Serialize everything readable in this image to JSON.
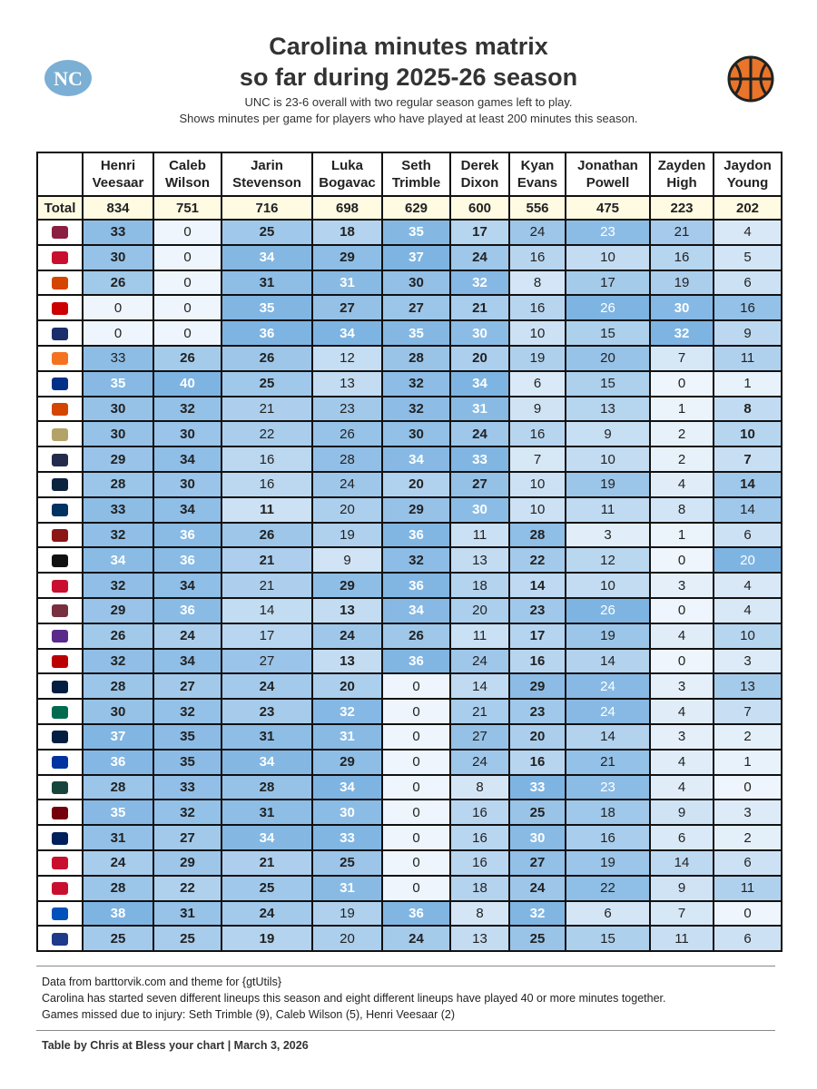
{
  "header": {
    "title_lines": [
      "Carolina minutes matrix",
      "so far during 2025-26 season"
    ],
    "subtitle_lines": [
      "UNC is 23-6 overall with two regular season games left to play.",
      "Shows minutes per game for players who have played at least 200 minutes this season."
    ]
  },
  "table": {
    "columns": [
      "Henri Veesaar",
      "Caleb Wilson",
      "Jarin Stevenson",
      "Luka Bogavac",
      "Seth Trimble",
      "Derek Dixon",
      "Kyan Evans",
      "Jonathan Powell",
      "Zayden High",
      "Jaydon Young"
    ],
    "total_label": "Total",
    "totals": [
      834,
      751,
      716,
      698,
      629,
      600,
      556,
      475,
      223,
      202
    ],
    "rows": [
      {
        "values": [
          33,
          0,
          25,
          18,
          35,
          17,
          24,
          23,
          21,
          4
        ],
        "bold": [
          true,
          false,
          true,
          true,
          true,
          true,
          false,
          false,
          false,
          false
        ]
      },
      {
        "values": [
          30,
          0,
          34,
          29,
          37,
          24,
          16,
          10,
          16,
          5
        ],
        "bold": [
          true,
          false,
          true,
          true,
          true,
          true,
          false,
          false,
          false,
          false
        ]
      },
      {
        "values": [
          26,
          0,
          31,
          31,
          30,
          32,
          8,
          17,
          19,
          6
        ],
        "bold": [
          true,
          false,
          true,
          true,
          true,
          true,
          false,
          false,
          false,
          false
        ]
      },
      {
        "values": [
          0,
          0,
          35,
          27,
          27,
          21,
          16,
          26,
          30,
          16
        ],
        "bold": [
          false,
          false,
          true,
          true,
          true,
          true,
          false,
          false,
          true,
          false
        ]
      },
      {
        "values": [
          0,
          0,
          36,
          34,
          35,
          30,
          10,
          15,
          32,
          9
        ],
        "bold": [
          false,
          false,
          true,
          true,
          true,
          true,
          false,
          false,
          true,
          false
        ]
      },
      {
        "values": [
          33,
          26,
          26,
          12,
          28,
          20,
          19,
          20,
          7,
          11
        ],
        "bold": [
          false,
          true,
          true,
          false,
          true,
          true,
          false,
          false,
          false,
          false
        ]
      },
      {
        "values": [
          35,
          40,
          25,
          13,
          32,
          34,
          6,
          15,
          0,
          1
        ],
        "bold": [
          true,
          true,
          true,
          false,
          true,
          true,
          false,
          false,
          false,
          false
        ]
      },
      {
        "values": [
          30,
          32,
          21,
          23,
          32,
          31,
          9,
          13,
          1,
          8
        ],
        "bold": [
          true,
          true,
          false,
          false,
          true,
          true,
          false,
          false,
          false,
          true
        ]
      },
      {
        "values": [
          30,
          30,
          22,
          26,
          30,
          24,
          16,
          9,
          2,
          10
        ],
        "bold": [
          true,
          true,
          false,
          false,
          true,
          true,
          false,
          false,
          false,
          true
        ]
      },
      {
        "values": [
          29,
          34,
          16,
          28,
          34,
          33,
          7,
          10,
          2,
          7
        ],
        "bold": [
          true,
          true,
          false,
          false,
          true,
          true,
          false,
          false,
          false,
          true
        ]
      },
      {
        "values": [
          28,
          30,
          16,
          24,
          20,
          27,
          10,
          19,
          4,
          14
        ],
        "bold": [
          true,
          true,
          false,
          false,
          true,
          true,
          false,
          false,
          false,
          true
        ]
      },
      {
        "values": [
          33,
          34,
          11,
          20,
          29,
          30,
          10,
          11,
          8,
          14
        ],
        "bold": [
          true,
          true,
          true,
          false,
          true,
          true,
          false,
          false,
          false,
          false
        ]
      },
      {
        "values": [
          32,
          36,
          26,
          19,
          36,
          11,
          28,
          3,
          1,
          6
        ],
        "bold": [
          true,
          true,
          true,
          false,
          true,
          false,
          true,
          false,
          false,
          false
        ]
      },
      {
        "values": [
          34,
          36,
          21,
          9,
          32,
          13,
          22,
          12,
          0,
          20
        ],
        "bold": [
          true,
          true,
          true,
          false,
          true,
          false,
          true,
          false,
          false,
          false
        ]
      },
      {
        "values": [
          32,
          34,
          21,
          29,
          36,
          18,
          14,
          10,
          3,
          4
        ],
        "bold": [
          true,
          true,
          false,
          true,
          true,
          false,
          true,
          false,
          false,
          false
        ]
      },
      {
        "values": [
          29,
          36,
          14,
          13,
          34,
          20,
          23,
          26,
          0,
          4
        ],
        "bold": [
          true,
          true,
          false,
          true,
          true,
          false,
          true,
          false,
          false,
          false
        ]
      },
      {
        "values": [
          26,
          24,
          17,
          24,
          26,
          11,
          17,
          19,
          4,
          10
        ],
        "bold": [
          true,
          true,
          false,
          true,
          true,
          false,
          true,
          false,
          false,
          false
        ]
      },
      {
        "values": [
          32,
          34,
          27,
          13,
          36,
          24,
          16,
          14,
          0,
          3
        ],
        "bold": [
          true,
          true,
          false,
          true,
          true,
          false,
          true,
          false,
          false,
          false
        ]
      },
      {
        "values": [
          28,
          27,
          24,
          20,
          0,
          14,
          29,
          24,
          3,
          13
        ],
        "bold": [
          true,
          true,
          true,
          true,
          false,
          false,
          true,
          false,
          false,
          false
        ]
      },
      {
        "values": [
          30,
          32,
          23,
          32,
          0,
          21,
          23,
          24,
          4,
          7
        ],
        "bold": [
          true,
          true,
          true,
          true,
          false,
          false,
          true,
          false,
          false,
          false
        ]
      },
      {
        "values": [
          37,
          35,
          31,
          31,
          0,
          27,
          20,
          14,
          3,
          2
        ],
        "bold": [
          true,
          true,
          true,
          true,
          false,
          false,
          true,
          false,
          false,
          false
        ]
      },
      {
        "values": [
          36,
          35,
          34,
          29,
          0,
          24,
          16,
          21,
          4,
          1
        ],
        "bold": [
          true,
          true,
          true,
          true,
          false,
          false,
          true,
          false,
          false,
          false
        ]
      },
      {
        "values": [
          28,
          33,
          28,
          34,
          0,
          8,
          33,
          23,
          4,
          0
        ],
        "bold": [
          true,
          true,
          true,
          true,
          false,
          false,
          true,
          false,
          false,
          false
        ]
      },
      {
        "values": [
          35,
          32,
          31,
          30,
          0,
          16,
          25,
          18,
          9,
          3
        ],
        "bold": [
          true,
          true,
          true,
          true,
          false,
          false,
          true,
          false,
          false,
          false
        ]
      },
      {
        "values": [
          31,
          27,
          34,
          33,
          0,
          16,
          30,
          16,
          6,
          2
        ],
        "bold": [
          true,
          true,
          true,
          true,
          false,
          false,
          true,
          false,
          false,
          false
        ]
      },
      {
        "values": [
          24,
          29,
          21,
          25,
          0,
          16,
          27,
          19,
          14,
          6
        ],
        "bold": [
          true,
          true,
          true,
          true,
          false,
          false,
          true,
          false,
          false,
          false
        ]
      },
      {
        "values": [
          28,
          22,
          25,
          31,
          0,
          18,
          24,
          22,
          9,
          11
        ],
        "bold": [
          true,
          true,
          true,
          true,
          false,
          false,
          true,
          false,
          false,
          false
        ]
      },
      {
        "values": [
          38,
          31,
          24,
          19,
          36,
          8,
          32,
          6,
          7,
          0
        ],
        "bold": [
          true,
          true,
          true,
          false,
          true,
          false,
          true,
          false,
          false,
          false
        ]
      },
      {
        "values": [
          25,
          25,
          19,
          20,
          24,
          13,
          25,
          15,
          11,
          6
        ],
        "bold": [
          true,
          true,
          true,
          false,
          true,
          false,
          true,
          false,
          false,
          false
        ]
      }
    ]
  },
  "footer": {
    "notes": [
      "Data from barttorvik.com and theme for {gtUtils}",
      "Carolina has started seven different lineups this season and eight different lineups have played 40 or more minutes together.",
      "Games missed due to injury: Seth Trimble (9), Caleb Wilson (5), Henri Veesaar (2)"
    ],
    "credit": "Table by Chris at Bless your chart | March 3, 2026"
  }
}
